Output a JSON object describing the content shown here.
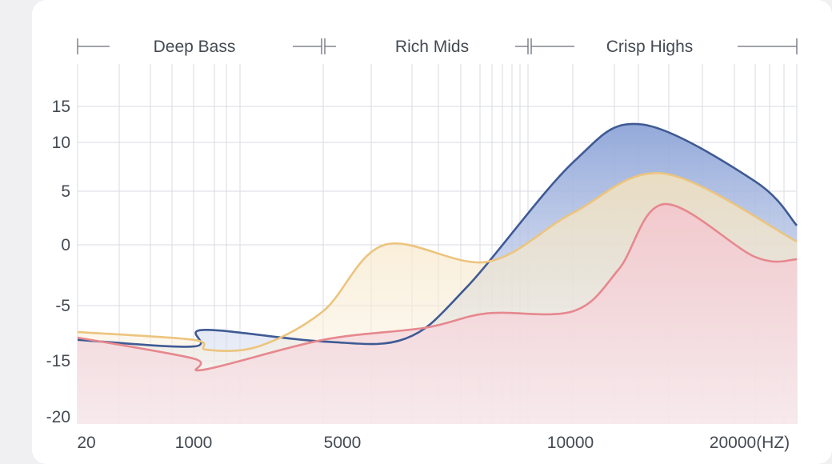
{
  "bands": [
    {
      "label": "Deep Bass"
    },
    {
      "label": "Rich Mids"
    },
    {
      "label": "Crisp Highs"
    }
  ],
  "chart_data": {
    "type": "area",
    "title": "",
    "xlabel": "",
    "ylabel": "",
    "x_tick_labels": [
      "20",
      "1000",
      "5000",
      "10000",
      "20000(HZ)"
    ],
    "y_tick_labels": [
      "15",
      "10",
      "5",
      "0",
      "-5",
      "-15",
      "-20"
    ],
    "grid": true,
    "series": [
      {
        "color": "#3f5a94",
        "fill": "#8ea5d8",
        "points": [
          [
            "20",
            -11.2
          ],
          [
            "1000",
            -12.4
          ],
          [
            "1300",
            -9.4
          ],
          [
            "5000",
            -11.5
          ],
          [
            "7000",
            -11
          ],
          [
            "8500",
            -3.5
          ],
          [
            "12000",
            8
          ],
          [
            "15000",
            12.5
          ],
          [
            "20000",
            6
          ],
          [
            "22000",
            1.8
          ]
        ]
      },
      {
        "color": "#ecc47e",
        "fill": "#f5e3bd",
        "points": [
          [
            "20",
            -9.8
          ],
          [
            "1000",
            -11.2
          ],
          [
            "1400",
            -13
          ],
          [
            "3000",
            -12.4
          ],
          [
            "5000",
            -6
          ],
          [
            "6500",
            0
          ],
          [
            "9000",
            -1.4
          ],
          [
            "12000",
            3
          ],
          [
            "16000",
            6.8
          ],
          [
            "22000",
            0.3
          ]
        ]
      },
      {
        "color": "#e6888e",
        "fill": "#f3c7cd",
        "points": [
          [
            "20",
            -10.8
          ],
          [
            "1000",
            -14.6
          ],
          [
            "1300",
            -15.8
          ],
          [
            "5000",
            -11.2
          ],
          [
            "7500",
            -9
          ],
          [
            "9000",
            -6.4
          ],
          [
            "12000",
            -6
          ],
          [
            "14000",
            -2
          ],
          [
            "16000",
            3.8
          ],
          [
            "20000",
            -1
          ],
          [
            "22000",
            -1.2
          ]
        ]
      }
    ]
  }
}
